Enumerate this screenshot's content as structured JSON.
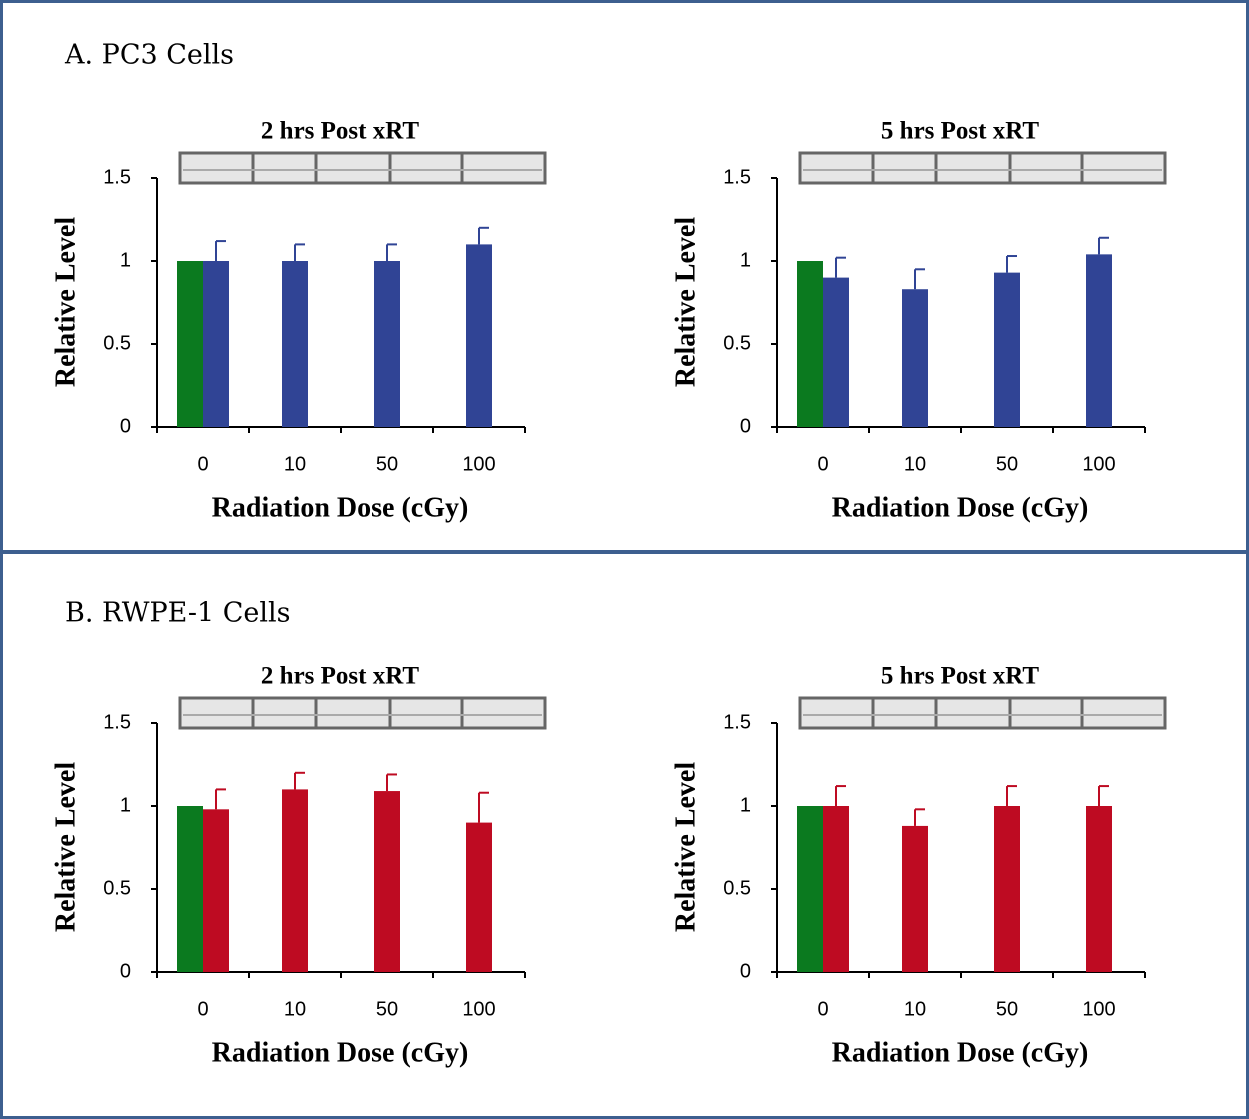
{
  "panels": [
    {
      "title": "A.  PC3 Cells"
    },
    {
      "title": "B.  RWPE-1 Cells"
    }
  ],
  "chart_data": [
    {
      "type": "bar",
      "title": "2 hrs Post xRT",
      "xlabel": "Radiation Dose (cGy)",
      "ylabel": "Relative Level",
      "categories": [
        "0",
        "10",
        "50",
        "100"
      ],
      "series": [
        {
          "color": "#0b7a1f",
          "values": [
            1,
            null,
            null,
            null
          ]
        },
        {
          "color": "#304495",
          "values": [
            1,
            1,
            1,
            1.1
          ],
          "errors": [
            0.12,
            0.1,
            0.1,
            0.1
          ]
        }
      ],
      "ylim": [
        0,
        1.5
      ],
      "yticks": [
        0,
        0.5,
        1,
        1.5
      ]
    },
    {
      "type": "bar",
      "title": "5 hrs Post xRT",
      "xlabel": "Radiation Dose (cGy)",
      "ylabel": "Relative Level",
      "categories": [
        "0",
        "10",
        "50",
        "100"
      ],
      "series": [
        {
          "color": "#0b7a1f",
          "values": [
            1,
            null,
            null,
            null
          ]
        },
        {
          "color": "#304495",
          "values": [
            0.9,
            0.83,
            0.93,
            1.04
          ],
          "errors": [
            0.12,
            0.12,
            0.1,
            0.1
          ]
        }
      ],
      "ylim": [
        0,
        1.5
      ],
      "yticks": [
        0,
        0.5,
        1,
        1.5
      ]
    },
    {
      "type": "bar",
      "title": "2 hrs Post xRT",
      "xlabel": "Radiation Dose (cGy)",
      "ylabel": "Relative Level",
      "categories": [
        "0",
        "10",
        "50",
        "100"
      ],
      "series": [
        {
          "color": "#0b7a1f",
          "values": [
            1,
            null,
            null,
            null
          ]
        },
        {
          "color": "#be0b22",
          "values": [
            0.98,
            1.1,
            1.09,
            0.9
          ],
          "errors": [
            0.12,
            0.1,
            0.1,
            0.18
          ]
        }
      ],
      "ylim": [
        0,
        1.5
      ],
      "yticks": [
        0,
        0.5,
        1,
        1.5
      ]
    },
    {
      "type": "bar",
      "title": "5 hrs Post xRT",
      "xlabel": "Radiation Dose (cGy)",
      "ylabel": "Relative Level",
      "categories": [
        "0",
        "10",
        "50",
        "100"
      ],
      "series": [
        {
          "color": "#0b7a1f",
          "values": [
            1,
            null,
            null,
            null
          ]
        },
        {
          "color": "#be0b22",
          "values": [
            1,
            0.88,
            1,
            1
          ],
          "errors": [
            0.12,
            0.1,
            0.12,
            0.12
          ]
        }
      ],
      "ylim": [
        0,
        1.5
      ],
      "yticks": [
        0,
        0.5,
        1,
        1.5
      ]
    }
  ]
}
